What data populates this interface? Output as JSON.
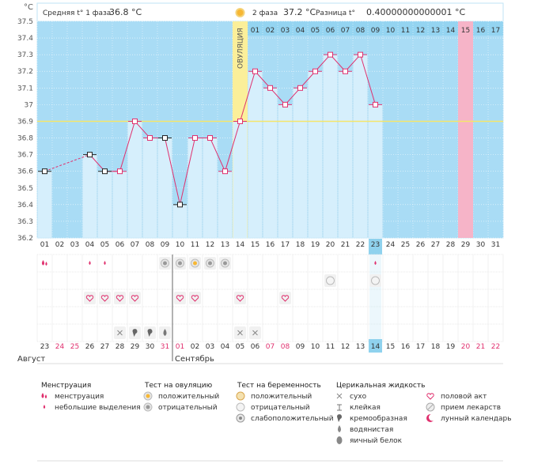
{
  "chart_data": {
    "type": "line",
    "y_unit": "°C",
    "ylim": [
      36.2,
      37.5
    ],
    "y_ticks": [
      "37.5",
      "37.4",
      "37.3",
      "37.2",
      "37.1",
      "37",
      "36.9",
      "36.8",
      "36.7",
      "36.6",
      "36.5",
      "36.4",
      "36.3",
      "36.2"
    ],
    "header": {
      "phase1_label": "Средняя t° 1 фаза",
      "phase1_value": "36.8 °C",
      "phase2_label": "2 фаза",
      "phase2_value": "37.2 °C",
      "diff_label": "Разница t°",
      "diff_value": "0.40000000000001 °C"
    },
    "ovulation_label": "ОВУЛЯЦИЯ",
    "ovulation_day_index": 13,
    "coverline": 36.9,
    "cycle_days": [
      "01",
      "02",
      "03",
      "04",
      "05",
      "06",
      "07",
      "08",
      "09",
      "10",
      "11",
      "12",
      "13",
      "14",
      "15",
      "16",
      "17",
      "18",
      "19",
      "20",
      "21",
      "22",
      "23",
      "24",
      "25",
      "26",
      "27",
      "28",
      "29",
      "30",
      "31"
    ],
    "phase2_days": [
      "01",
      "02",
      "03",
      "04",
      "05",
      "06",
      "07",
      "08",
      "09",
      "10",
      "11",
      "12",
      "13",
      "14",
      "15",
      "16",
      "17"
    ],
    "highlight_cycle_day": "23",
    "calendar_dates": [
      {
        "d": "23",
        "we": false
      },
      {
        "d": "24",
        "we": true
      },
      {
        "d": "25",
        "we": true
      },
      {
        "d": "26",
        "we": false
      },
      {
        "d": "27",
        "we": false
      },
      {
        "d": "28",
        "we": false
      },
      {
        "d": "29",
        "we": false
      },
      {
        "d": "30",
        "we": false
      },
      {
        "d": "31",
        "we": true
      },
      {
        "d": "01",
        "we": true
      },
      {
        "d": "02",
        "we": false
      },
      {
        "d": "03",
        "we": false
      },
      {
        "d": "04",
        "we": false
      },
      {
        "d": "05",
        "we": false
      },
      {
        "d": "06",
        "we": false
      },
      {
        "d": "07",
        "we": true
      },
      {
        "d": "08",
        "we": true
      },
      {
        "d": "09",
        "we": false
      },
      {
        "d": "10",
        "we": false
      },
      {
        "d": "11",
        "we": false
      },
      {
        "d": "12",
        "we": false
      },
      {
        "d": "13",
        "we": false
      },
      {
        "d": "14",
        "we": false,
        "today": true
      },
      {
        "d": "15",
        "we": false
      },
      {
        "d": "16",
        "we": false
      },
      {
        "d": "17",
        "we": false
      },
      {
        "d": "18",
        "we": false
      },
      {
        "d": "19",
        "we": false
      },
      {
        "d": "20",
        "we": true
      },
      {
        "d": "21",
        "we": true
      },
      {
        "d": "22",
        "we": true
      }
    ],
    "months": [
      {
        "label": "Август",
        "start_index": 0
      },
      {
        "label": "Сентябрь",
        "start_index": 9
      }
    ],
    "temps": [
      36.6,
      null,
      null,
      36.7,
      36.6,
      36.6,
      36.9,
      36.8,
      36.8,
      36.4,
      36.8,
      36.8,
      36.6,
      36.9,
      37.2,
      37.1,
      37.0,
      37.1,
      37.2,
      37.3,
      37.2,
      37.3,
      37.0
    ],
    "excluded_points": [
      0,
      3,
      4,
      8,
      9
    ],
    "dashed_segments": [
      [
        0,
        3
      ]
    ],
    "pink_day_index": 28,
    "symbols": {
      "menstruation": [
        {
          "day": 0,
          "kind": "heavy"
        },
        {
          "day": 3,
          "kind": "light"
        },
        {
          "day": 4,
          "kind": "light"
        },
        {
          "day": 22,
          "kind": "light"
        }
      ],
      "ovulation_test": [
        {
          "day": 8,
          "kind": "negative"
        },
        {
          "day": 9,
          "kind": "negative"
        },
        {
          "day": 10,
          "kind": "positive"
        },
        {
          "day": 11,
          "kind": "negative"
        },
        {
          "day": 12,
          "kind": "negative"
        }
      ],
      "pregnancy_test": [
        {
          "day": 19,
          "kind": "negative"
        },
        {
          "day": 22,
          "kind": "negative"
        }
      ],
      "intercourse": [
        3,
        4,
        5,
        6,
        9,
        10,
        13,
        16
      ],
      "cervical": [
        {
          "day": 5,
          "kind": "dry"
        },
        {
          "day": 6,
          "kind": "creamy"
        },
        {
          "day": 7,
          "kind": "creamy"
        },
        {
          "day": 8,
          "kind": "watery"
        },
        {
          "day": 13,
          "kind": "dry"
        },
        {
          "day": 14,
          "kind": "dry"
        }
      ]
    },
    "legend": {
      "groups": [
        {
          "title": "Менструация",
          "items": [
            {
              "icon": "drop-heavy",
              "label": "менструация"
            },
            {
              "icon": "drop-light",
              "label": "небольшие выделения"
            }
          ]
        },
        {
          "title": "Тест на овуляцию",
          "items": [
            {
              "icon": "test-positive",
              "label": "положительный"
            },
            {
              "icon": "test-negative",
              "label": "отрицательный"
            }
          ]
        },
        {
          "title": "Тест на беременность",
          "items": [
            {
              "icon": "preg-positive",
              "label": "положительный"
            },
            {
              "icon": "preg-negative",
              "label": "отрицательный"
            },
            {
              "icon": "preg-weak",
              "label": "слабоположительный"
            }
          ]
        },
        {
          "title": "Церикальная жидкость",
          "items": [
            {
              "icon": "dry",
              "label": "сухо"
            },
            {
              "icon": "sticky",
              "label": "клейкая"
            },
            {
              "icon": "creamy",
              "label": "кремообразная"
            },
            {
              "icon": "watery",
              "label": "водянистая"
            },
            {
              "icon": "eggwhite",
              "label": "яичный белок"
            }
          ]
        },
        {
          "title": "",
          "items": [
            {
              "icon": "heart",
              "label": "половой акт"
            },
            {
              "icon": "pill",
              "label": "прием лекарств"
            },
            {
              "icon": "moon",
              "label": "лунный календарь"
            }
          ]
        }
      ]
    },
    "colors": {
      "plot_bg": "#a9dcf5",
      "plot_bg_dark": "#94d4f1",
      "bar": "#d6effc",
      "line": "#e0306e",
      "ovulation": "#fbef9a",
      "pink": "#f6b4c8",
      "coverline": "#f5e66a",
      "today": "#8fd2ee",
      "weekend": "#e0306e"
    }
  }
}
